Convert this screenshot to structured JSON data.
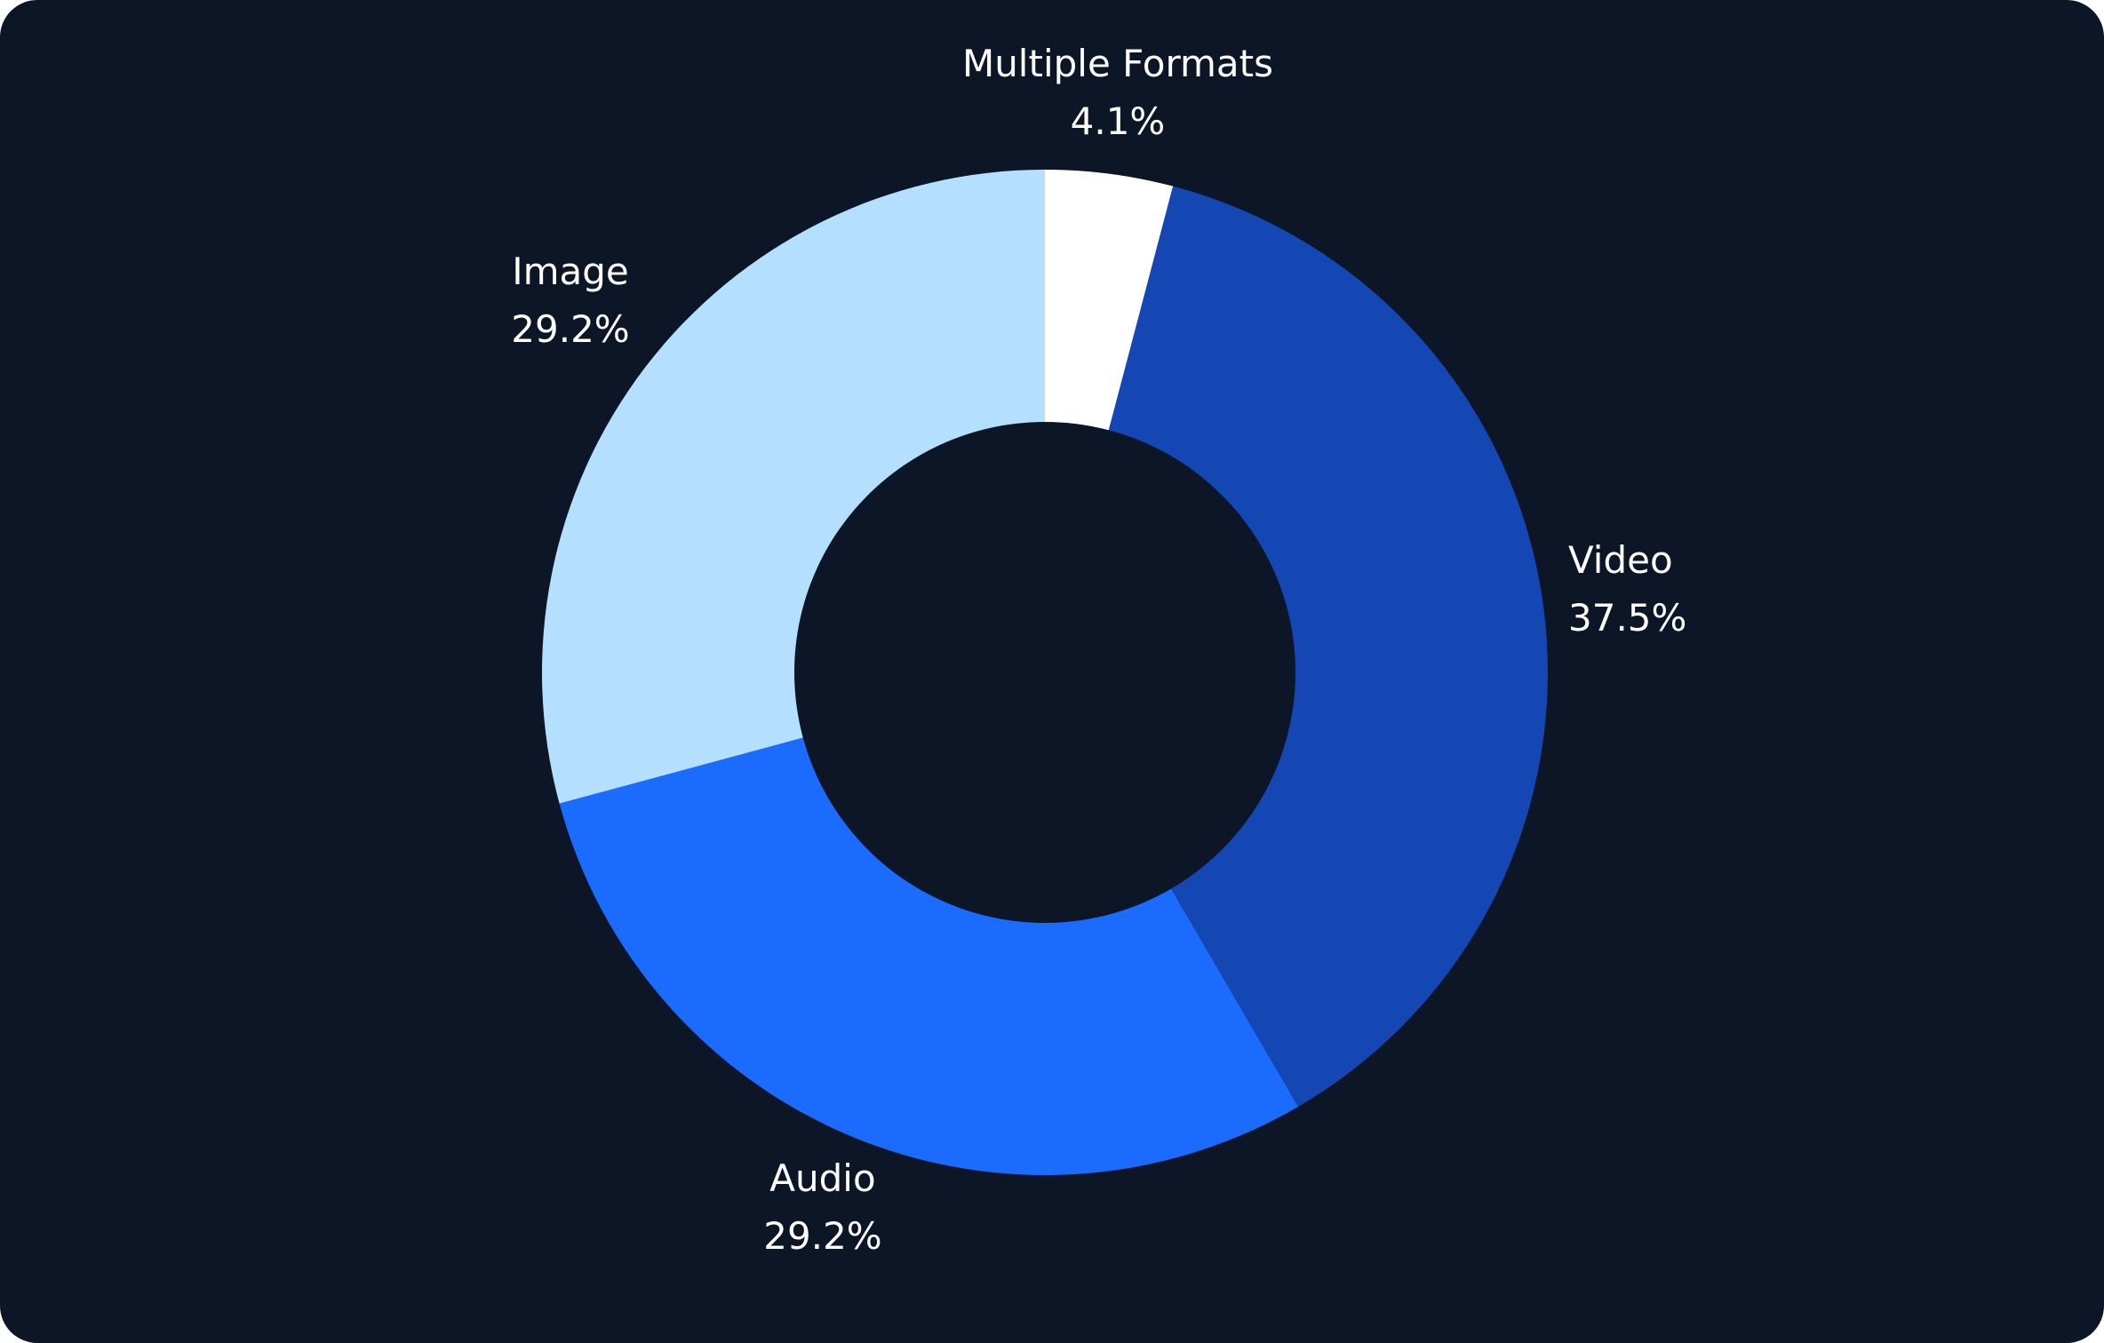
{
  "chart_data": {
    "type": "pie",
    "donut": true,
    "title": "",
    "categories": [
      "Multiple Formats",
      "Video",
      "Audio",
      "Image"
    ],
    "values": [
      4.1,
      37.5,
      29.2,
      29.2
    ],
    "value_labels": [
      "4.1%",
      "37.5%",
      "29.2%",
      "29.2%"
    ],
    "colors": [
      "#ffffff",
      "#1446b4",
      "#1b6bff",
      "#b5dfff"
    ],
    "background_color": "#0d1627",
    "legend": "none",
    "labels_position": "outside"
  }
}
